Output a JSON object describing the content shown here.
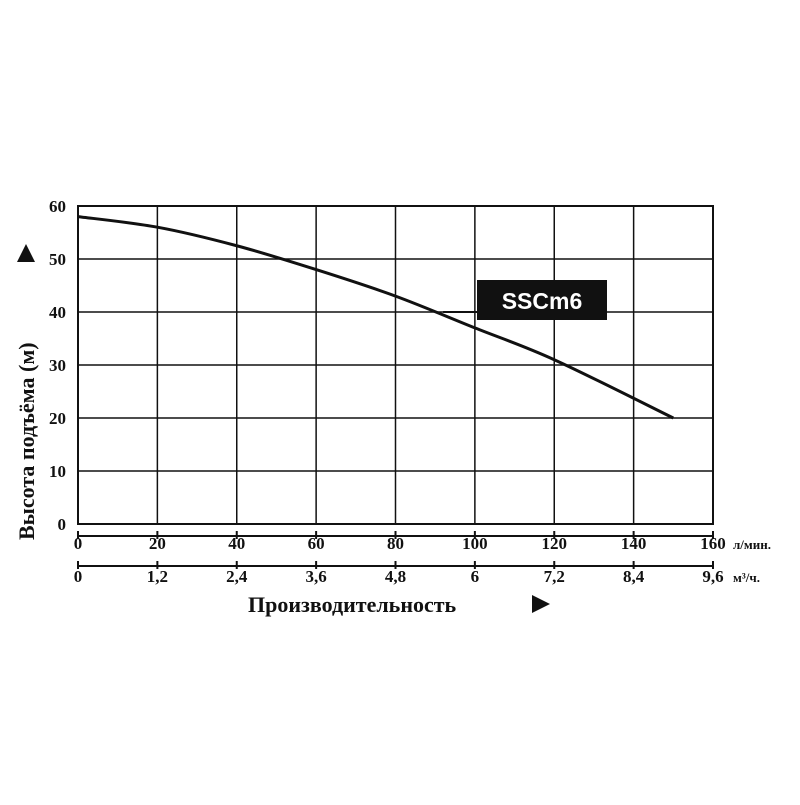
{
  "chart_data": {
    "type": "line",
    "xlabel": "Производительность",
    "ylabel": "Высота подъёма (м)",
    "x_unit": "л/мин.",
    "x2_unit": "м³/ч.",
    "xlim": [
      0,
      160
    ],
    "ylim": [
      0,
      60
    ],
    "x_ticks": [
      "0",
      "20",
      "40",
      "60",
      "80",
      "100",
      "120",
      "140",
      "160"
    ],
    "x2_ticks": [
      "0",
      "1,2",
      "2,4",
      "3,6",
      "4,8",
      "6",
      "7,2",
      "8,4",
      "9,6"
    ],
    "y_ticks": [
      "0",
      "10",
      "20",
      "30",
      "40",
      "50",
      "60"
    ],
    "grid": true,
    "series": [
      {
        "name": "SSCm6",
        "x": [
          0,
          20,
          40,
          60,
          80,
          100,
          120,
          150
        ],
        "y": [
          58,
          56,
          52.5,
          48,
          43,
          37,
          31,
          20
        ]
      }
    ]
  }
}
